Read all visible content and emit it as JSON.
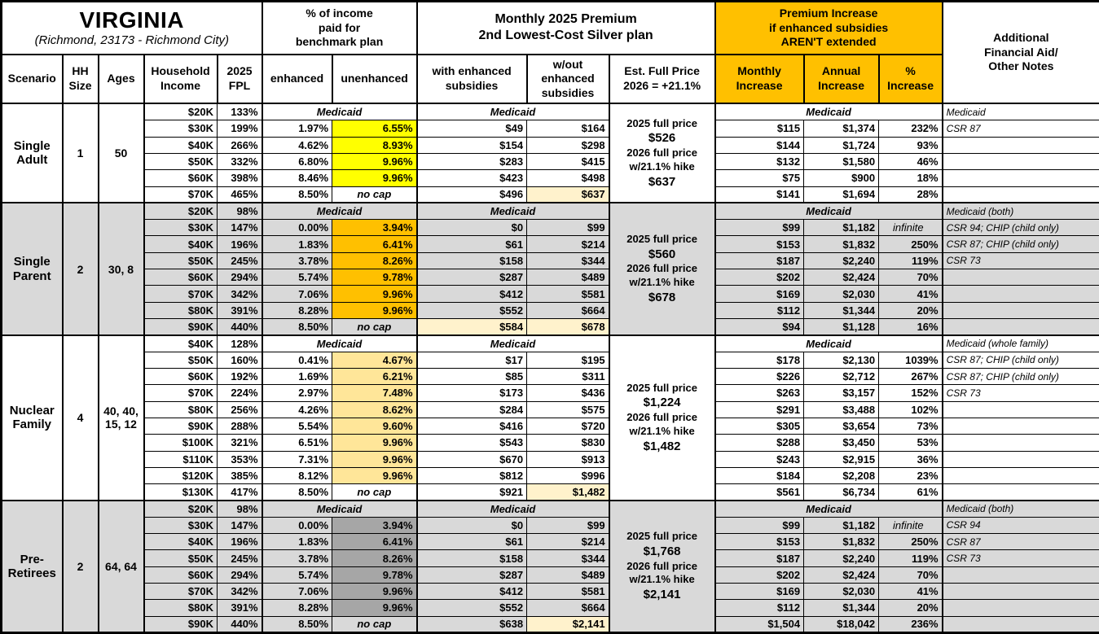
{
  "header": {
    "state": "VIRGINIA",
    "region": "(Richmond, 23173 - Richmond City)",
    "income_pct": "% of income\npaid for\nbenchmark plan",
    "premium": "Monthly 2025 Premium\n2nd Lowest-Cost Silver plan",
    "increase": "Premium Increase\nif enhanced subsidies\nAREN'T extended",
    "notes": "Additional\nFinancial Aid/\nOther Notes",
    "scenario": "Scenario",
    "hh": "HH\nSize",
    "ages": "Ages",
    "income": "Household\nIncome",
    "fpl": "2025\nFPL",
    "enhanced": "enhanced",
    "unenhanced": "unenhanced",
    "with_sub": "with enhanced\nsubsidies",
    "wo_sub": "w/out\nenhanced\nsubsidies",
    "est": "Est. Full Price\n2026 = +21.1%",
    "monthly": "Monthly\nIncrease",
    "annual": "Annual\nIncrease",
    "pct": "%\nIncrease"
  },
  "labels": {
    "medicaid": "Medicaid",
    "no_cap": "no cap",
    "infinite": "infinite"
  },
  "colors": {
    "header_accent": "#FFC000",
    "yellow_highlight": "#FFFF00",
    "orange_highlight": "#FFC000",
    "pale_gold_highlight": "#FFE699",
    "dark_gray_highlight": "#A6A6A6",
    "cream": "#FFF2CC",
    "gray_row": "#D9D9D9",
    "white_row": "#FFFFFF"
  },
  "groups": [
    {
      "scenario": "Single\nAdult",
      "hh_size": "1",
      "ages": "50",
      "row_bg": "#FFFFFF",
      "hl_color": "#FFFF00",
      "full_price": {
        "label_2025": "2025 full price",
        "price_2025": "$526",
        "label_2026": "2026 full price",
        "label_hike": "w/21.1% hike",
        "price_2026": "$637"
      },
      "rows": [
        {
          "income": "$20K",
          "fpl": "133%",
          "type": "medicaid",
          "notes": "Medicaid"
        },
        {
          "income": "$30K",
          "fpl": "199%",
          "enhanced": "1.97%",
          "unenhanced": "6.55%",
          "hl": true,
          "with_sub": "$49",
          "wo_sub": "$164",
          "monthly": "$115",
          "annual": "$1,374",
          "pct": "232%",
          "notes": "CSR 87"
        },
        {
          "income": "$40K",
          "fpl": "266%",
          "enhanced": "4.62%",
          "unenhanced": "8.93%",
          "hl": true,
          "with_sub": "$154",
          "wo_sub": "$298",
          "monthly": "$144",
          "annual": "$1,724",
          "pct": "93%",
          "notes": ""
        },
        {
          "income": "$50K",
          "fpl": "332%",
          "enhanced": "6.80%",
          "unenhanced": "9.96%",
          "hl": true,
          "with_sub": "$283",
          "wo_sub": "$415",
          "monthly": "$132",
          "annual": "$1,580",
          "pct": "46%",
          "notes": ""
        },
        {
          "income": "$60K",
          "fpl": "398%",
          "enhanced": "8.46%",
          "unenhanced": "9.96%",
          "hl": true,
          "with_sub": "$423",
          "wo_sub": "$498",
          "monthly": "$75",
          "annual": "$900",
          "pct": "18%",
          "notes": ""
        },
        {
          "income": "$70K",
          "fpl": "465%",
          "enhanced": "8.50%",
          "unenhanced": "no cap",
          "nocap": true,
          "with_sub": "$496",
          "wo_sub": "$637",
          "wo_cream": true,
          "monthly": "$141",
          "annual": "$1,694",
          "pct": "28%",
          "notes": ""
        }
      ]
    },
    {
      "scenario": "Single\nParent",
      "hh_size": "2",
      "ages": "30, 8",
      "row_bg": "#D9D9D9",
      "hl_color": "#FFC000",
      "full_price": {
        "label_2025": "2025 full price",
        "price_2025": "$560",
        "label_2026": "2026 full price",
        "label_hike": "w/21.1% hike",
        "price_2026": "$678"
      },
      "rows": [
        {
          "income": "$20K",
          "fpl": "98%",
          "type": "medicaid",
          "notes": "Medicaid (both)"
        },
        {
          "income": "$30K",
          "fpl": "147%",
          "enhanced": "0.00%",
          "unenhanced": "3.94%",
          "hl": true,
          "with_sub": "$0",
          "wo_sub": "$99",
          "monthly": "$99",
          "annual": "$1,182",
          "pct": "infinite",
          "notes": "CSR 94; CHIP (child only)"
        },
        {
          "income": "$40K",
          "fpl": "196%",
          "enhanced": "1.83%",
          "unenhanced": "6.41%",
          "hl": true,
          "with_sub": "$61",
          "wo_sub": "$214",
          "monthly": "$153",
          "annual": "$1,832",
          "pct": "250%",
          "notes": "CSR 87; CHIP (child only)"
        },
        {
          "income": "$50K",
          "fpl": "245%",
          "enhanced": "3.78%",
          "unenhanced": "8.26%",
          "hl": true,
          "with_sub": "$158",
          "wo_sub": "$344",
          "monthly": "$187",
          "annual": "$2,240",
          "pct": "119%",
          "notes": "CSR 73"
        },
        {
          "income": "$60K",
          "fpl": "294%",
          "enhanced": "5.74%",
          "unenhanced": "9.78%",
          "hl": true,
          "with_sub": "$287",
          "wo_sub": "$489",
          "monthly": "$202",
          "annual": "$2,424",
          "pct": "70%",
          "notes": ""
        },
        {
          "income": "$70K",
          "fpl": "342%",
          "enhanced": "7.06%",
          "unenhanced": "9.96%",
          "hl": true,
          "with_sub": "$412",
          "wo_sub": "$581",
          "monthly": "$169",
          "annual": "$2,030",
          "pct": "41%",
          "notes": ""
        },
        {
          "income": "$80K",
          "fpl": "391%",
          "enhanced": "8.28%",
          "unenhanced": "9.96%",
          "hl": true,
          "with_sub": "$552",
          "wo_sub": "$664",
          "monthly": "$112",
          "annual": "$1,344",
          "pct": "20%",
          "notes": ""
        },
        {
          "income": "$90K",
          "fpl": "440%",
          "enhanced": "8.50%",
          "unenhanced": "no cap",
          "nocap": true,
          "with_sub": "$584",
          "with_cream": true,
          "wo_sub": "$678",
          "wo_cream": true,
          "monthly": "$94",
          "annual": "$1,128",
          "pct": "16%",
          "notes": ""
        }
      ]
    },
    {
      "scenario": "Nuclear\nFamily",
      "hh_size": "4",
      "ages": "40, 40,\n15, 12",
      "row_bg": "#FFFFFF",
      "hl_color": "#FFE699",
      "full_price": {
        "label_2025": "2025 full price",
        "price_2025": "$1,224",
        "label_2026": "2026 full price",
        "label_hike": "w/21.1% hike",
        "price_2026": "$1,482"
      },
      "rows": [
        {
          "income": "$40K",
          "fpl": "128%",
          "type": "medicaid",
          "notes": "Medicaid (whole family)"
        },
        {
          "income": "$50K",
          "fpl": "160%",
          "enhanced": "0.41%",
          "unenhanced": "4.67%",
          "hl": true,
          "with_sub": "$17",
          "wo_sub": "$195",
          "monthly": "$178",
          "annual": "$2,130",
          "pct": "1039%",
          "notes": "CSR 87; CHIP (child only)"
        },
        {
          "income": "$60K",
          "fpl": "192%",
          "enhanced": "1.69%",
          "unenhanced": "6.21%",
          "hl": true,
          "with_sub": "$85",
          "wo_sub": "$311",
          "monthly": "$226",
          "annual": "$2,712",
          "pct": "267%",
          "notes": "CSR 87; CHIP (child only)"
        },
        {
          "income": "$70K",
          "fpl": "224%",
          "enhanced": "2.97%",
          "unenhanced": "7.48%",
          "hl": true,
          "with_sub": "$173",
          "wo_sub": "$436",
          "monthly": "$263",
          "annual": "$3,157",
          "pct": "152%",
          "notes": "CSR 73"
        },
        {
          "income": "$80K",
          "fpl": "256%",
          "enhanced": "4.26%",
          "unenhanced": "8.62%",
          "hl": true,
          "with_sub": "$284",
          "wo_sub": "$575",
          "monthly": "$291",
          "annual": "$3,488",
          "pct": "102%",
          "notes": ""
        },
        {
          "income": "$90K",
          "fpl": "288%",
          "enhanced": "5.54%",
          "unenhanced": "9.60%",
          "hl": true,
          "with_sub": "$416",
          "wo_sub": "$720",
          "monthly": "$305",
          "annual": "$3,654",
          "pct": "73%",
          "notes": ""
        },
        {
          "income": "$100K",
          "fpl": "321%",
          "enhanced": "6.51%",
          "unenhanced": "9.96%",
          "hl": true,
          "with_sub": "$543",
          "wo_sub": "$830",
          "monthly": "$288",
          "annual": "$3,450",
          "pct": "53%",
          "notes": ""
        },
        {
          "income": "$110K",
          "fpl": "353%",
          "enhanced": "7.31%",
          "unenhanced": "9.96%",
          "hl": true,
          "with_sub": "$670",
          "wo_sub": "$913",
          "monthly": "$243",
          "annual": "$2,915",
          "pct": "36%",
          "notes": ""
        },
        {
          "income": "$120K",
          "fpl": "385%",
          "enhanced": "8.12%",
          "unenhanced": "9.96%",
          "hl": true,
          "with_sub": "$812",
          "wo_sub": "$996",
          "monthly": "$184",
          "annual": "$2,208",
          "pct": "23%",
          "notes": ""
        },
        {
          "income": "$130K",
          "fpl": "417%",
          "enhanced": "8.50%",
          "unenhanced": "no cap",
          "nocap": true,
          "with_sub": "$921",
          "wo_sub": "$1,482",
          "wo_cream": true,
          "monthly": "$561",
          "annual": "$6,734",
          "pct": "61%",
          "notes": ""
        }
      ]
    },
    {
      "scenario": "Pre-\nRetirees",
      "hh_size": "2",
      "ages": "64, 64",
      "row_bg": "#D9D9D9",
      "hl_color": "#A6A6A6",
      "full_price": {
        "label_2025": "2025 full price",
        "price_2025": "$1,768",
        "label_2026": "2026 full price",
        "label_hike": "w/21.1% hike",
        "price_2026": "$2,141"
      },
      "rows": [
        {
          "income": "$20K",
          "fpl": "98%",
          "type": "medicaid",
          "notes": "Medicaid (both)"
        },
        {
          "income": "$30K",
          "fpl": "147%",
          "enhanced": "0.00%",
          "unenhanced": "3.94%",
          "hl": true,
          "with_sub": "$0",
          "wo_sub": "$99",
          "monthly": "$99",
          "annual": "$1,182",
          "pct": "infinite",
          "notes": "CSR 94"
        },
        {
          "income": "$40K",
          "fpl": "196%",
          "enhanced": "1.83%",
          "unenhanced": "6.41%",
          "hl": true,
          "with_sub": "$61",
          "wo_sub": "$214",
          "monthly": "$153",
          "annual": "$1,832",
          "pct": "250%",
          "notes": "CSR 87"
        },
        {
          "income": "$50K",
          "fpl": "245%",
          "enhanced": "3.78%",
          "unenhanced": "8.26%",
          "hl": true,
          "with_sub": "$158",
          "wo_sub": "$344",
          "monthly": "$187",
          "annual": "$2,240",
          "pct": "119%",
          "notes": "CSR 73"
        },
        {
          "income": "$60K",
          "fpl": "294%",
          "enhanced": "5.74%",
          "unenhanced": "9.78%",
          "hl": true,
          "with_sub": "$287",
          "wo_sub": "$489",
          "monthly": "$202",
          "annual": "$2,424",
          "pct": "70%",
          "notes": ""
        },
        {
          "income": "$70K",
          "fpl": "342%",
          "enhanced": "7.06%",
          "unenhanced": "9.96%",
          "hl": true,
          "with_sub": "$412",
          "wo_sub": "$581",
          "monthly": "$169",
          "annual": "$2,030",
          "pct": "41%",
          "notes": ""
        },
        {
          "income": "$80K",
          "fpl": "391%",
          "enhanced": "8.28%",
          "unenhanced": "9.96%",
          "hl": true,
          "with_sub": "$552",
          "wo_sub": "$664",
          "monthly": "$112",
          "annual": "$1,344",
          "pct": "20%",
          "notes": ""
        },
        {
          "income": "$90K",
          "fpl": "440%",
          "enhanced": "8.50%",
          "unenhanced": "no cap",
          "nocap": true,
          "with_sub": "$638",
          "wo_sub": "$2,141",
          "wo_cream": true,
          "monthly": "$1,504",
          "annual": "$18,042",
          "pct": "236%",
          "notes": ""
        }
      ]
    }
  ]
}
